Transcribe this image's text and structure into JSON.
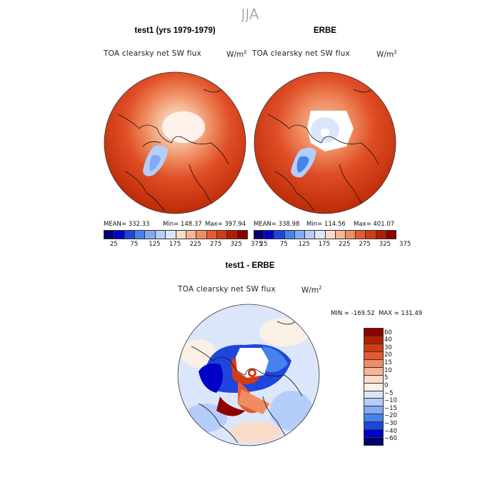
{
  "season": "JJA",
  "panels": [
    {
      "title": "test1 (yrs 1979-1979)",
      "variable": "TOA clearsky net SW flux",
      "unit": "W/m",
      "unit_sup": "2",
      "stats": {
        "mean": "MEAN= 332.33",
        "min": "Min= 148.37",
        "max": "Max= 397.94"
      }
    },
    {
      "title": "ERBE",
      "variable": "TOA clearsky net SW flux",
      "unit": "W/m",
      "unit_sup": "2",
      "stats": {
        "mean": "MEAN= 338.98",
        "min": "Min= 114.56",
        "max": "Max= 401.07"
      }
    }
  ],
  "diff_panel": {
    "title": "test1 - ERBE",
    "variable": "TOA clearsky net SW flux",
    "unit": "W/m",
    "unit_sup": "2",
    "minmax": "MIN = -169.52  MAX = 131.49"
  },
  "colorbar_top": {
    "colors": [
      "#00006e",
      "#0000c8",
      "#1e46dc",
      "#4682eb",
      "#82aaf5",
      "#b4cdfa",
      "#dce6fa",
      "#fadcc8",
      "#f5b496",
      "#f08c64",
      "#e65a32",
      "#d23c14",
      "#b41e00",
      "#8c0000"
    ],
    "ticks": [
      "25",
      "75",
      "125",
      "175",
      "225",
      "275",
      "325",
      "375"
    ]
  },
  "colorbar_diff": {
    "colors": [
      "#8c0000",
      "#b41e00",
      "#d23c14",
      "#e65a32",
      "#f08c64",
      "#f5b496",
      "#fadcc8",
      "#faf0e6",
      "#dce6fa",
      "#b4cdfa",
      "#82aaf5",
      "#4682eb",
      "#1e46dc",
      "#0000c8",
      "#00006e"
    ],
    "ticks": [
      "60",
      "40",
      "30",
      "20",
      "15",
      "10",
      "5",
      "0",
      "−5",
      "−10",
      "−15",
      "−20",
      "−30",
      "−40",
      "−60"
    ]
  }
}
